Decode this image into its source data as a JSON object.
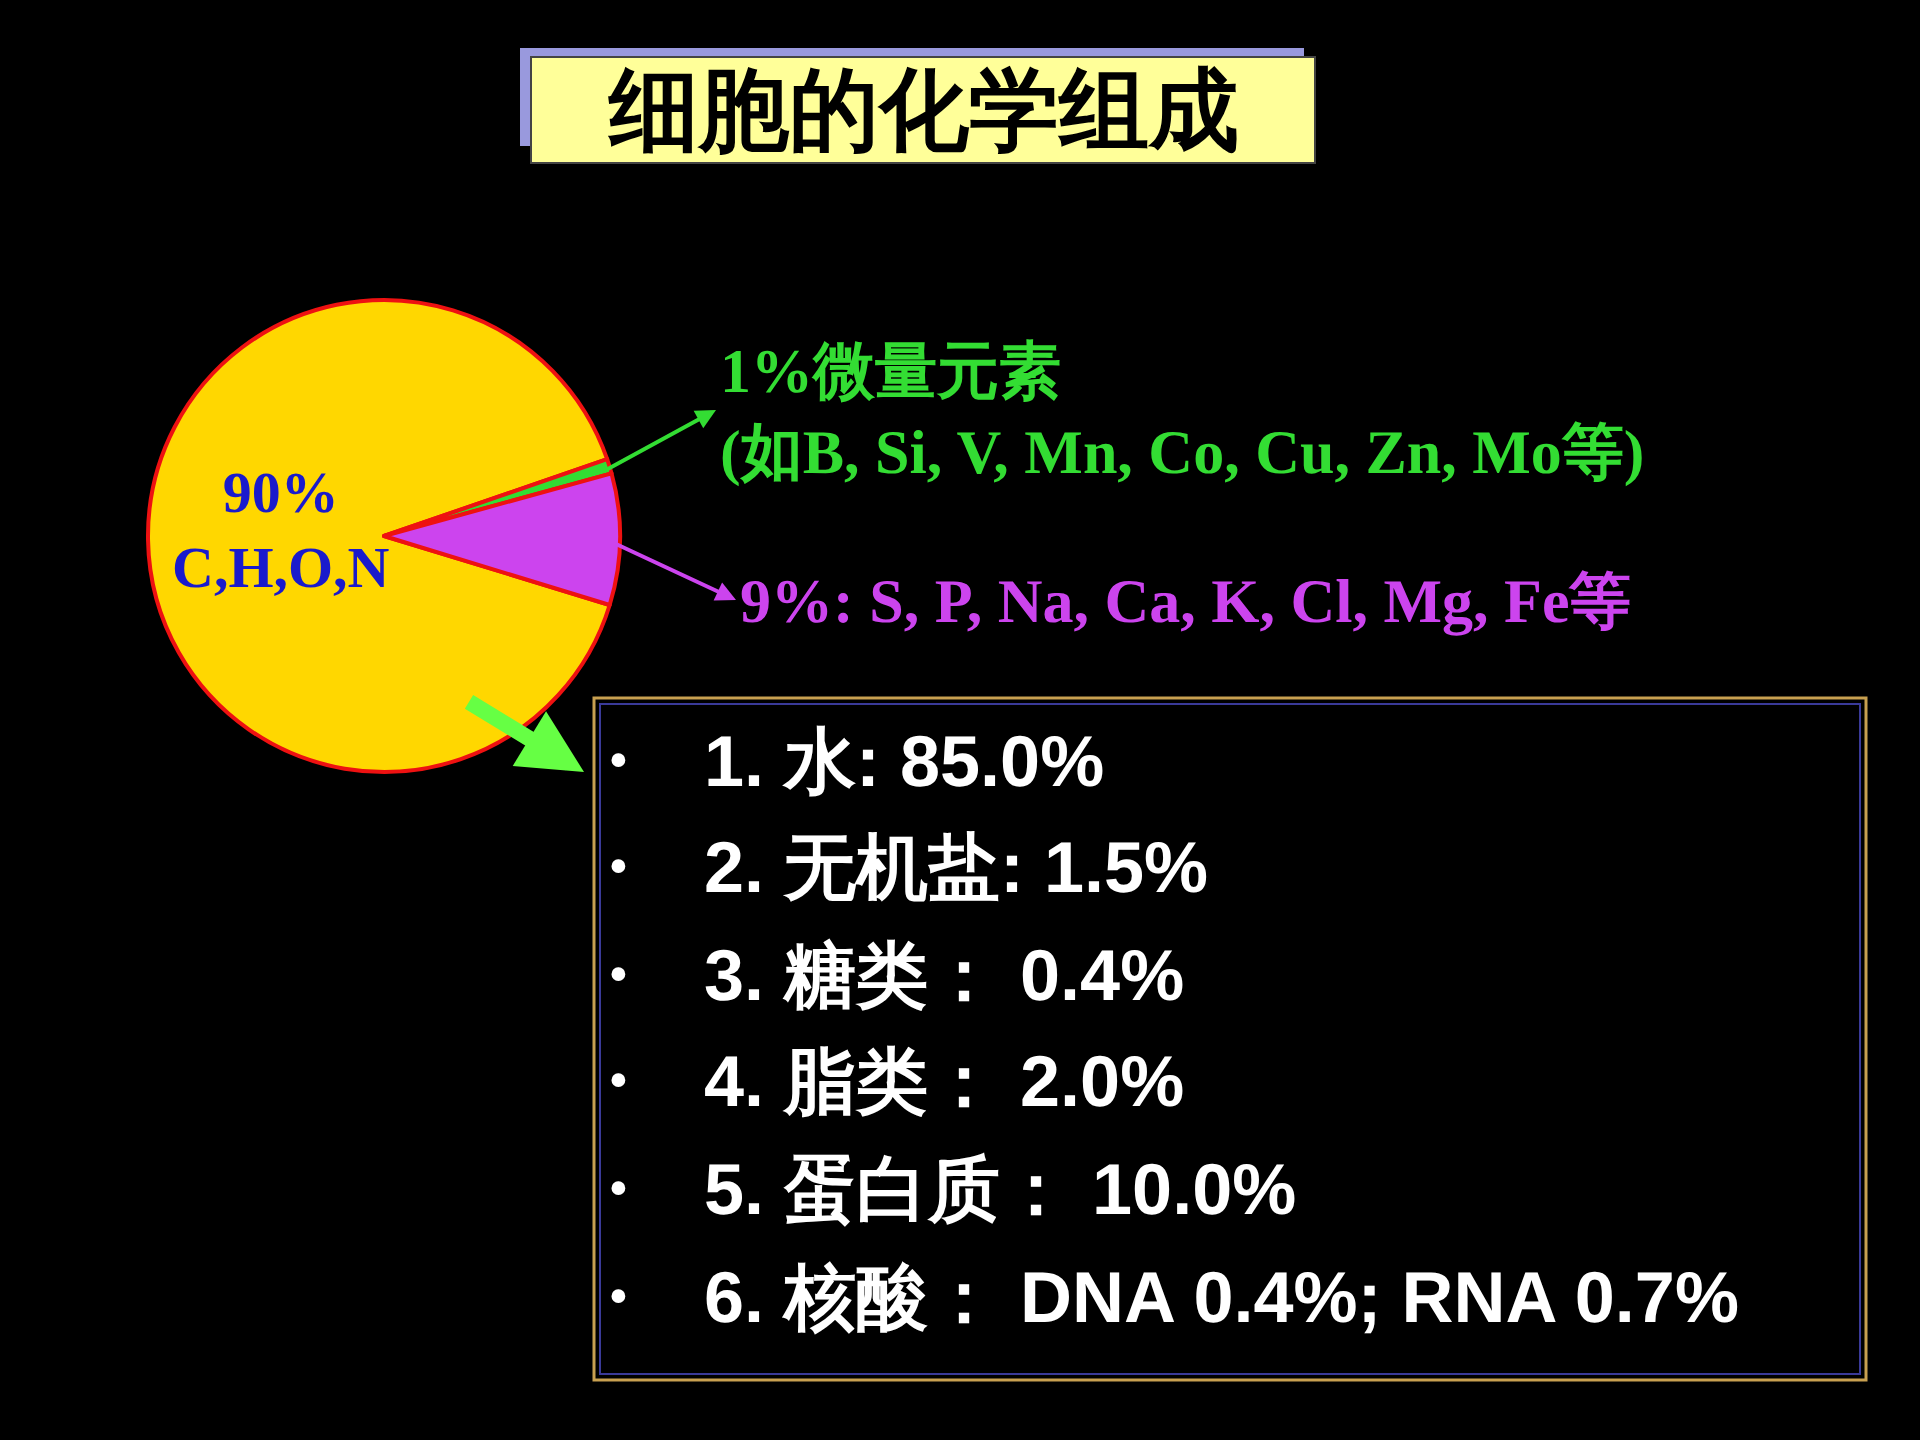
{
  "chart_data": {
    "type": "pie",
    "title": "细胞的化学组成",
    "categories": [
      "90%\nC,H,O,N",
      "1%微量元素\n(如B, Si, V, Mn, Co, Cu, Zn, Mo等)",
      "9%: S, P, Na, Ca, K, Cl, Mg, Fe等"
    ],
    "values": [
      90,
      1,
      9
    ],
    "colors": [
      "#ffd700",
      "#33dd33",
      "#cc44ee"
    ],
    "legend": "right",
    "annotations": [
      "• 1. 水: 85.0%",
      "• 2. 无机盐: 1.5%",
      "• 3. 糖类： 0.4%",
      "• 4. 脂类： 2.0%",
      "• 5. 蛋白质： 10.0%",
      "• 6. 核酸： DNA 0.4%; RNA 0.7%"
    ]
  }
}
